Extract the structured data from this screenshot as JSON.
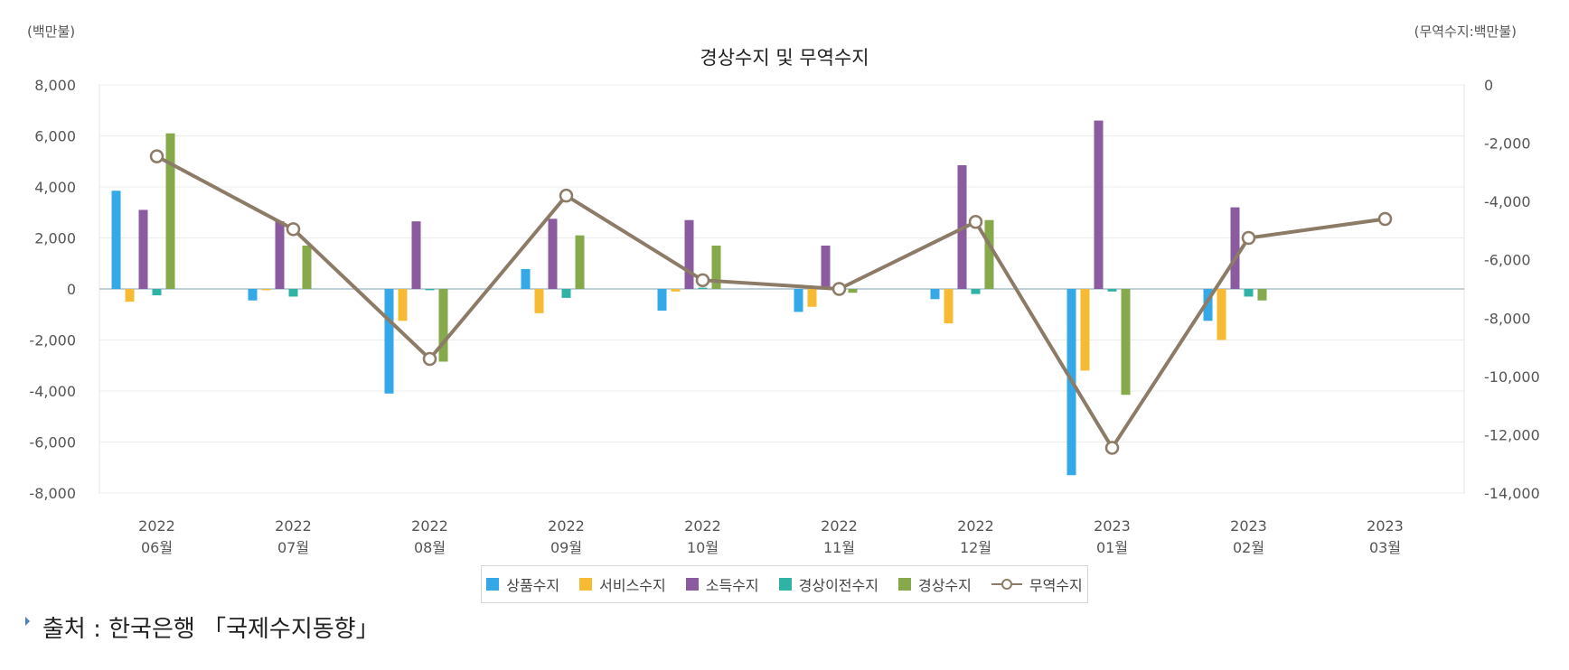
{
  "header": {
    "unit_left": "(백만불)",
    "unit_right": "(무역수지:백만불)"
  },
  "chart_data": {
    "type": "bar",
    "title": "경상수지 및 무역수지",
    "categories": [
      [
        "2022",
        "06월"
      ],
      [
        "2022",
        "07월"
      ],
      [
        "2022",
        "08월"
      ],
      [
        "2022",
        "09월"
      ],
      [
        "2022",
        "10월"
      ],
      [
        "2022",
        "11월"
      ],
      [
        "2022",
        "12월"
      ],
      [
        "2023",
        "01월"
      ],
      [
        "2023",
        "02월"
      ],
      [
        "2023",
        "03월"
      ]
    ],
    "y_left": {
      "min": -8000,
      "max": 8000,
      "step": 2000,
      "ticks": [
        "8,000",
        "6,000",
        "4,000",
        "2,000",
        "0",
        "-2,000",
        "-4,000",
        "-6,000",
        "-8,000"
      ]
    },
    "y_right": {
      "min": -14000,
      "max": 0,
      "step": 2000,
      "ticks": [
        "0",
        "-2,000",
        "-4,000",
        "-6,000",
        "-8,000",
        "-10,000",
        "-12,000",
        "-14,000"
      ]
    },
    "grid": true,
    "legend_position": "bottom",
    "series": [
      {
        "name": "상품수지",
        "type": "bar",
        "axis": "left",
        "color": "#35a9e8",
        "values": [
          3850,
          -450,
          -4100,
          780,
          -850,
          -900,
          -400,
          -7300,
          -1250,
          null
        ]
      },
      {
        "name": "서비스수지",
        "type": "bar",
        "axis": "left",
        "color": "#f6bb33",
        "values": [
          -500,
          -50,
          -1250,
          -950,
          -100,
          -700,
          -1350,
          -3200,
          -2000,
          null
        ]
      },
      {
        "name": "소득수지",
        "type": "bar",
        "axis": "left",
        "color": "#8a5b9e",
        "values": [
          3100,
          2650,
          2650,
          2750,
          2700,
          1700,
          4850,
          6600,
          3200,
          null
        ]
      },
      {
        "name": "경상이전수지",
        "type": "bar",
        "axis": "left",
        "color": "#2fb3a5",
        "values": [
          -250,
          -300,
          -50,
          -350,
          50,
          100,
          -200,
          -100,
          -300,
          null
        ]
      },
      {
        "name": "경상수지",
        "type": "bar",
        "axis": "left",
        "color": "#86a94c",
        "values": [
          6100,
          1700,
          -2850,
          2100,
          1700,
          -150,
          2700,
          -4150,
          -450,
          null
        ]
      },
      {
        "name": "무역수지",
        "type": "line",
        "axis": "right",
        "color": "#8c7b66",
        "values": [
          -2450,
          -4950,
          -9400,
          -3800,
          -6700,
          -7000,
          -4700,
          -12450,
          -5250,
          -4600
        ]
      }
    ]
  },
  "source": {
    "text": "출처 : 한국은행 「국제수지동향」"
  }
}
